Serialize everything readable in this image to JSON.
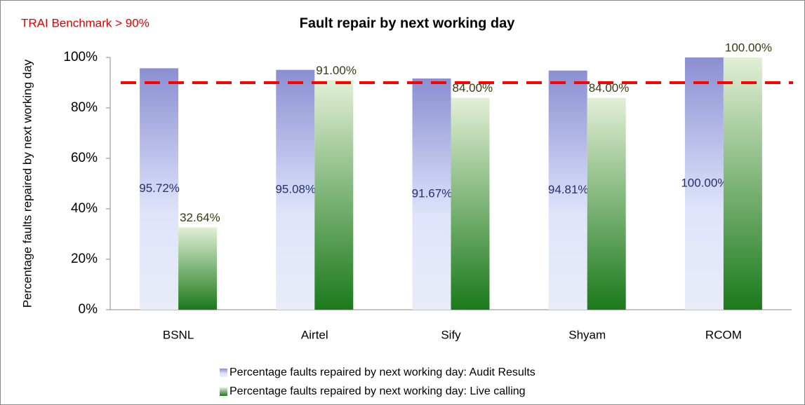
{
  "chart_data": {
    "type": "bar",
    "title": "Fault repair by next working day",
    "annotation": "TRAI Benchmark  > 90%",
    "benchmark": 90,
    "benchmark_color": "#ff0000",
    "y_label": "Percentage faults repaired by next working day",
    "categories": [
      "BSNL",
      "Airtel",
      "Sify",
      "Shyam",
      "RCOM"
    ],
    "series": [
      {
        "name": "Percentage faults repaired  by next working day: Audit Results",
        "color": "#8a8fd2",
        "values": [
          95.72,
          95.08,
          91.67,
          94.81,
          100
        ],
        "value_labels": [
          "95.72%",
          "95.08%",
          "91.67%",
          "94.81%",
          "100.00%"
        ]
      },
      {
        "name": "Percentage faults repaired  by next working day: Live calling",
        "color": "#1b7a1b",
        "values": [
          32.64,
          91,
          84,
          84,
          100
        ],
        "value_labels": [
          "32.64%",
          "91.00%",
          "84.00%",
          "84.00%",
          "100.00%"
        ]
      }
    ],
    "ylim": [
      0,
      100
    ],
    "yticks": [
      {
        "value": 0,
        "label": "0%"
      },
      {
        "value": 20,
        "label": "20%"
      },
      {
        "value": 40,
        "label": "40%"
      },
      {
        "value": 60,
        "label": "60%"
      },
      {
        "value": 80,
        "label": "80%"
      },
      {
        "value": 100,
        "label": "100%"
      }
    ]
  }
}
